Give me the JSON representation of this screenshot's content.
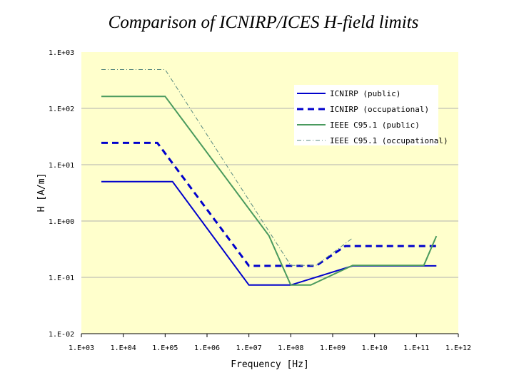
{
  "chart_data": {
    "type": "line",
    "title": "Comparison of ICNIRP/ICES H-field limits",
    "xlabel": "Frequency [Hz]",
    "ylabel": "H [A/m]",
    "x_scale": "log",
    "y_scale": "log",
    "xlim": [
      1000,
      1000000000000
    ],
    "ylim": [
      0.01,
      1000
    ],
    "x_ticks": [
      1000,
      10000,
      100000,
      1000000,
      10000000,
      100000000,
      1000000000,
      10000000000,
      100000000000,
      1000000000000
    ],
    "x_tick_labels": [
      "1.E+03",
      "1.E+04",
      "1.E+05",
      "1.E+06",
      "1.E+07",
      "1.E+08",
      "1.E+09",
      "1.E+10",
      "1.E+11",
      "1.E+12"
    ],
    "y_ticks": [
      0.01,
      0.1,
      1,
      10,
      100,
      1000
    ],
    "y_tick_labels": [
      "1.E-02",
      "1.E-01",
      "1.E+00",
      "1.E+01",
      "1.E+02",
      "1.E+03"
    ],
    "grid": {
      "y": true,
      "x": false
    },
    "legend_position": "top-right",
    "plot_background": "#ffffcc",
    "series": [
      {
        "name": "ICNIRP (public)",
        "color": "#0000cc",
        "style": "solid",
        "width": 2,
        "x": [
          3000,
          150000,
          10000000,
          100000000,
          3000000000,
          300000000000
        ],
        "y": [
          5,
          5,
          0.073,
          0.073,
          0.16,
          0.16
        ]
      },
      {
        "name": "ICNIRP (occupational)",
        "color": "#0000cc",
        "style": "dashed",
        "width": 3,
        "x": [
          3000,
          65000,
          1000000,
          10000000,
          400000000,
          2000000000,
          300000000000
        ],
        "y": [
          24.4,
          24.4,
          1.6,
          0.16,
          0.16,
          0.36,
          0.36
        ]
      },
      {
        "name": "IEEE C95.1 (public)",
        "color": "#4a9a5e",
        "style": "solid",
        "width": 2,
        "x": [
          3000,
          100000,
          30000000,
          100000000,
          300000000,
          3000000000,
          150000000000,
          300000000000
        ],
        "y": [
          163,
          163,
          0.55,
          0.073,
          0.073,
          0.163,
          0.163,
          0.54
        ]
      },
      {
        "name": "IEEE C95.1 (occupational)",
        "color": "#5a8a80",
        "style": "dashdot",
        "width": 1,
        "x": [
          3000,
          100000,
          100000000,
          400000000,
          3000000000
        ],
        "y": [
          490,
          490,
          0.163,
          0.163,
          0.5
        ]
      }
    ]
  }
}
